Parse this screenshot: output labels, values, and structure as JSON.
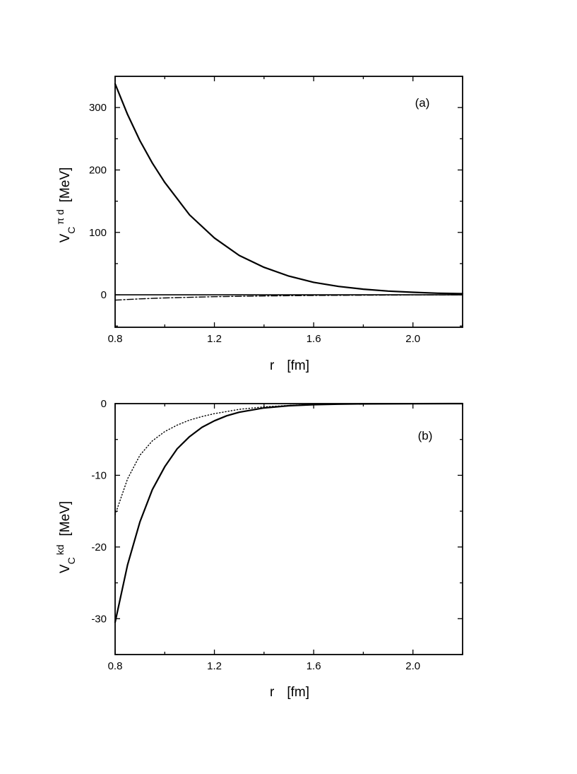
{
  "chart_data": [
    {
      "type": "line",
      "panel_label": "(a)",
      "xlabel_symbol": "r",
      "xlabel_unit": "[fm]",
      "ylabel_main": "V",
      "ylabel_sub": "C",
      "ylabel_sup": "π d",
      "ylabel_unit": "[MeV]",
      "xlim": [
        0.8,
        2.2
      ],
      "ylim": [
        -52,
        350
      ],
      "x_ticks": [
        0.8,
        1.2,
        1.6,
        2.0
      ],
      "x_tick_labels": [
        "0.8",
        "1.2",
        "1.6",
        "2.0"
      ],
      "y_ticks": [
        0,
        100,
        200,
        300
      ],
      "y_tick_labels": [
        "0",
        "100",
        "200",
        "300"
      ],
      "x_minor_ticks": [
        1.0,
        1.4,
        1.8,
        2.2
      ],
      "y_minor_ticks": [
        -50,
        50,
        150,
        250
      ],
      "zero_line": true,
      "grid": false,
      "series": [
        {
          "style": "solid",
          "x": [
            0.8,
            0.85,
            0.9,
            0.95,
            1.0,
            1.1,
            1.2,
            1.3,
            1.4,
            1.5,
            1.6,
            1.7,
            1.8,
            1.9,
            2.0,
            2.1,
            2.2
          ],
          "y": [
            338,
            289,
            247,
            211,
            180,
            128,
            91,
            63,
            44,
            30,
            20,
            13.5,
            9,
            6,
            4,
            2.6,
            1.8
          ]
        },
        {
          "style": "dash-dot",
          "x": [
            0.8,
            0.9,
            1.0,
            1.2,
            1.4,
            1.6,
            1.8,
            2.0,
            2.2
          ],
          "y": [
            -8.5,
            -6.5,
            -5.0,
            -3.0,
            -1.8,
            -1.0,
            -0.6,
            -0.3,
            -0.2
          ]
        }
      ]
    },
    {
      "type": "line",
      "panel_label": "(b)",
      "xlabel_symbol": "r",
      "xlabel_unit": "[fm]",
      "ylabel_main": "V",
      "ylabel_sub": "C",
      "ylabel_sup": "kd",
      "ylabel_unit": "[MeV]",
      "xlim": [
        0.8,
        2.2
      ],
      "ylim": [
        -35,
        0
      ],
      "x_ticks": [
        0.8,
        1.2,
        1.6,
        2.0
      ],
      "x_tick_labels": [
        "0.8",
        "1.2",
        "1.6",
        "2.0"
      ],
      "y_ticks": [
        0,
        -10,
        -20,
        -30
      ],
      "y_tick_labels": [
        "0",
        "-10",
        "-20",
        "-30"
      ],
      "x_minor_ticks": [
        1.0,
        1.4,
        1.8,
        2.2
      ],
      "y_minor_ticks": [
        -5,
        -15,
        -25,
        -35
      ],
      "zero_line": false,
      "grid": false,
      "series": [
        {
          "style": "solid",
          "x": [
            0.8,
            0.85,
            0.9,
            0.95,
            1.0,
            1.05,
            1.1,
            1.15,
            1.2,
            1.25,
            1.3,
            1.4,
            1.5,
            1.6,
            1.7,
            1.8,
            2.0,
            2.2
          ],
          "y": [
            -30.5,
            -22.5,
            -16.5,
            -12.0,
            -8.8,
            -6.3,
            -4.6,
            -3.3,
            -2.4,
            -1.7,
            -1.2,
            -0.6,
            -0.3,
            -0.15,
            -0.08,
            -0.04,
            -0.01,
            0
          ]
        },
        {
          "style": "dotted",
          "x": [
            0.8,
            0.85,
            0.9,
            0.95,
            1.0,
            1.05,
            1.1,
            1.15,
            1.2,
            1.25,
            1.3,
            1.4,
            1.5,
            1.6,
            1.8,
            2.0,
            2.2
          ],
          "y": [
            -15.5,
            -10.5,
            -7.2,
            -5.2,
            -3.9,
            -3.0,
            -2.3,
            -1.8,
            -1.4,
            -1.1,
            -0.8,
            -0.45,
            -0.25,
            -0.12,
            -0.04,
            -0.01,
            0
          ]
        }
      ]
    }
  ]
}
